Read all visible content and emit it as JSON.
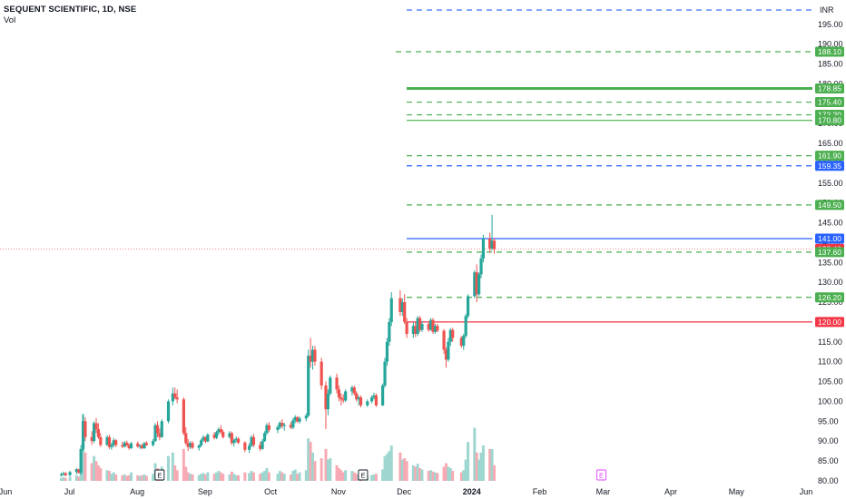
{
  "header": {
    "title": "SEQUENT SCIENTIFIC, 1D, NSE",
    "volume_label": "Vol"
  },
  "chart_data": {
    "type": "candlestick",
    "currency": "INR",
    "colors": {
      "up": "#26a69a",
      "down": "#ef5350",
      "up_volume": "#9ed6d0",
      "down_volume": "#f7aab3"
    },
    "y_ticks": [
      80,
      85,
      90,
      95,
      100,
      105,
      110,
      115,
      120,
      125,
      130,
      135,
      140,
      145,
      150,
      155,
      160,
      165,
      170,
      175,
      180,
      185,
      190,
      195
    ],
    "ylim": [
      78.6,
      199.3
    ],
    "x_labels": [
      "Jun",
      "Jul",
      "Aug",
      "Sep",
      "Oct",
      "Nov",
      "Dec",
      "2024",
      "Feb",
      "Mar",
      "Apr",
      "May",
      "Jun"
    ],
    "current_price": 138.4,
    "price_levels": [
      {
        "price": 198.6,
        "style": "dashed",
        "color": "#2962ff",
        "label": ""
      },
      {
        "price": 188.1,
        "style": "dashed",
        "color": "#4caf50",
        "label": "188.10"
      },
      {
        "price": 178.85,
        "style": "solid-thick",
        "color": "#4caf50",
        "label": "178.85"
      },
      {
        "price": 175.4,
        "style": "dashed",
        "color": "#4caf50",
        "label": "175.40"
      },
      {
        "price": 172.2,
        "style": "dashed",
        "color": "#4caf50",
        "label": "172.20"
      },
      {
        "price": 170.8,
        "style": "solid",
        "color": "#4caf50",
        "label": "170.80"
      },
      {
        "price": 161.9,
        "style": "dashed",
        "color": "#4caf50",
        "label": "161.90"
      },
      {
        "price": 159.35,
        "style": "dashed",
        "color": "#2962ff",
        "label": "159.35"
      },
      {
        "price": 149.5,
        "style": "dashed",
        "color": "#4caf50",
        "label": "149.50"
      },
      {
        "price": 141.0,
        "style": "solid",
        "color": "#2962ff",
        "label": "141.00"
      },
      {
        "price": 138.4,
        "style": "last-price",
        "color": "#f23645",
        "label": "138.40"
      },
      {
        "price": 137.6,
        "style": "dashed",
        "color": "#4caf50",
        "label": "137.60"
      },
      {
        "price": 126.2,
        "style": "dashed",
        "color": "#4caf50",
        "label": "126.20"
      },
      {
        "price": 120.0,
        "style": "solid",
        "color": "#f23645",
        "label": "120.00"
      }
    ],
    "events": [
      {
        "label": "E",
        "date": "2023-08-10",
        "color": "#131722"
      },
      {
        "label": "E",
        "date": "2023-11-11",
        "color": "#131722"
      },
      {
        "label": "E",
        "date": "2024-02-28",
        "color": "#e040fb"
      }
    ],
    "series_ohlc": [
      [
        "2023-06-26",
        81.5,
        82.0,
        81.0,
        81.6,
        0.04
      ],
      [
        "2023-06-27",
        81.6,
        82.3,
        81.2,
        81.9,
        0.05
      ],
      [
        "2023-06-28",
        81.9,
        82.2,
        81.1,
        81.4,
        0.04
      ],
      [
        "2023-06-30",
        81.4,
        82.5,
        81.2,
        82.2,
        0.06
      ],
      [
        "2023-07-03",
        82.2,
        83.2,
        81.6,
        82.9,
        0.08
      ],
      [
        "2023-07-04",
        82.9,
        83.0,
        81.8,
        82.0,
        0.06
      ],
      [
        "2023-07-05",
        82.0,
        89.0,
        81.5,
        88.0,
        0.32
      ],
      [
        "2023-07-06",
        88.0,
        96.5,
        87.5,
        95.0,
        0.95
      ],
      [
        "2023-07-07",
        95.0,
        96.0,
        90.0,
        91.0,
        0.4
      ],
      [
        "2023-07-10",
        91.0,
        92.5,
        89.0,
        90.0,
        0.25
      ],
      [
        "2023-07-11",
        90.0,
        95.0,
        89.5,
        94.5,
        0.35
      ],
      [
        "2023-07-12",
        94.5,
        95.8,
        92.0,
        93.0,
        0.28
      ],
      [
        "2023-07-13",
        93.0,
        94.5,
        90.5,
        91.0,
        0.22
      ],
      [
        "2023-07-14",
        91.0,
        92.0,
        88.5,
        89.0,
        0.18
      ],
      [
        "2023-07-17",
        89.0,
        91.5,
        88.8,
        91.0,
        0.15
      ],
      [
        "2023-07-18",
        91.0,
        91.6,
        88.0,
        88.5,
        0.14
      ],
      [
        "2023-07-19",
        88.5,
        89.5,
        87.8,
        89.0,
        0.1
      ],
      [
        "2023-07-20",
        89.0,
        90.8,
        88.5,
        90.2,
        0.12
      ],
      [
        "2023-07-21",
        90.2,
        90.5,
        88.5,
        89.0,
        0.09
      ],
      [
        "2023-07-24",
        89.0,
        89.8,
        88.2,
        88.6,
        0.08
      ],
      [
        "2023-07-25",
        88.6,
        90.0,
        88.4,
        89.6,
        0.09
      ],
      [
        "2023-07-26",
        89.6,
        90.1,
        88.7,
        89.0,
        0.07
      ],
      [
        "2023-07-27",
        89.0,
        89.4,
        87.8,
        88.2,
        0.08
      ],
      [
        "2023-07-28",
        88.2,
        89.8,
        88.0,
        89.4,
        0.12
      ],
      [
        "2023-07-31",
        89.4,
        89.9,
        88.3,
        88.6,
        0.08
      ],
      [
        "2023-08-01",
        88.6,
        89.2,
        88.0,
        88.9,
        0.07
      ],
      [
        "2023-08-02",
        88.9,
        89.3,
        87.9,
        88.2,
        0.08
      ],
      [
        "2023-08-03",
        88.2,
        89.8,
        88.0,
        89.5,
        0.09
      ],
      [
        "2023-08-04",
        89.5,
        90.0,
        88.8,
        89.0,
        0.07
      ],
      [
        "2023-08-07",
        89.0,
        90.5,
        88.6,
        90.0,
        0.1
      ],
      [
        "2023-08-08",
        90.0,
        94.5,
        89.8,
        94.0,
        0.25
      ],
      [
        "2023-08-09",
        94.0,
        95.0,
        91.0,
        92.0,
        0.18
      ],
      [
        "2023-08-10",
        92.0,
        93.2,
        90.2,
        91.0,
        0.13
      ],
      [
        "2023-08-11",
        91.0,
        95.5,
        90.8,
        95.0,
        0.2
      ],
      [
        "2023-08-14",
        95.0,
        100.5,
        94.5,
        100.0,
        0.35
      ],
      [
        "2023-08-16",
        100.0,
        103.5,
        99.0,
        102.0,
        0.4
      ],
      [
        "2023-08-17",
        102.0,
        103.5,
        100.5,
        101.0,
        0.22
      ],
      [
        "2023-08-18",
        101.0,
        103.0,
        99.5,
        100.5,
        0.15
      ],
      [
        "2023-08-21",
        100.5,
        101.0,
        91.5,
        92.0,
        0.45
      ],
      [
        "2023-08-22",
        92.0,
        93.5,
        89.0,
        89.5,
        0.2
      ],
      [
        "2023-08-23",
        89.5,
        90.5,
        87.5,
        88.5,
        0.12
      ],
      [
        "2023-08-24",
        88.5,
        90.0,
        88.0,
        89.5,
        0.1
      ],
      [
        "2023-08-25",
        89.5,
        90.0,
        88.0,
        88.3,
        0.09
      ],
      [
        "2023-08-28",
        88.3,
        89.2,
        87.6,
        88.9,
        0.08
      ],
      [
        "2023-08-29",
        88.9,
        90.6,
        88.5,
        90.2,
        0.1
      ],
      [
        "2023-08-30",
        90.2,
        91.5,
        89.8,
        91.0,
        0.11
      ],
      [
        "2023-08-31",
        91.0,
        91.2,
        89.5,
        89.9,
        0.09
      ],
      [
        "2023-09-01",
        89.9,
        92.0,
        89.7,
        91.6,
        0.12
      ],
      [
        "2023-09-04",
        91.6,
        92.3,
        90.4,
        90.8,
        0.1
      ],
      [
        "2023-09-05",
        90.8,
        92.6,
        90.5,
        92.2,
        0.12
      ],
      [
        "2023-09-06",
        92.2,
        93.5,
        91.6,
        93.0,
        0.14
      ],
      [
        "2023-09-07",
        93.0,
        94.0,
        91.8,
        92.3,
        0.12
      ],
      [
        "2023-09-08",
        92.3,
        92.8,
        90.6,
        91.0,
        0.1
      ],
      [
        "2023-09-11",
        91.0,
        92.5,
        90.6,
        92.0,
        0.09
      ],
      [
        "2023-09-12",
        92.0,
        92.4,
        89.0,
        89.5,
        0.13
      ],
      [
        "2023-09-13",
        89.5,
        90.6,
        88.6,
        90.2,
        0.1
      ],
      [
        "2023-09-14",
        90.2,
        91.2,
        89.6,
        90.6,
        0.08
      ],
      [
        "2023-09-15",
        90.6,
        91.0,
        89.2,
        89.6,
        0.08
      ],
      [
        "2023-09-18",
        89.6,
        90.0,
        87.2,
        87.8,
        0.12
      ],
      [
        "2023-09-20",
        87.8,
        89.5,
        87.0,
        88.8,
        0.11
      ],
      [
        "2023-09-21",
        88.8,
        91.5,
        88.5,
        91.0,
        0.14
      ],
      [
        "2023-09-22",
        91.0,
        91.8,
        88.5,
        89.0,
        0.12
      ],
      [
        "2023-09-25",
        89.0,
        89.8,
        87.5,
        88.0,
        0.1
      ],
      [
        "2023-09-26",
        88.0,
        90.5,
        87.8,
        90.0,
        0.12
      ],
      [
        "2023-09-27",
        90.0,
        92.5,
        89.8,
        92.0,
        0.14
      ],
      [
        "2023-09-28",
        92.0,
        94.5,
        91.5,
        94.0,
        0.18
      ],
      [
        "2023-09-29",
        94.0,
        94.8,
        92.2,
        92.8,
        0.12
      ],
      [
        "2023-10-03",
        92.8,
        94.0,
        92.0,
        93.5,
        0.1
      ],
      [
        "2023-10-04",
        93.5,
        95.0,
        93.0,
        94.6,
        0.14
      ],
      [
        "2023-10-05",
        94.6,
        95.5,
        93.2,
        93.8,
        0.12
      ],
      [
        "2023-10-06",
        93.8,
        94.6,
        92.6,
        94.1,
        0.1
      ],
      [
        "2023-10-09",
        94.1,
        94.8,
        93.0,
        93.4,
        0.09
      ],
      [
        "2023-10-10",
        93.4,
        95.8,
        93.0,
        95.2,
        0.14
      ],
      [
        "2023-10-11",
        95.2,
        96.5,
        94.5,
        96.0,
        0.16
      ],
      [
        "2023-10-12",
        96.0,
        96.3,
        94.6,
        94.9,
        0.1
      ],
      [
        "2023-10-13",
        94.9,
        96.2,
        94.4,
        95.7,
        0.12
      ],
      [
        "2023-10-16",
        95.7,
        97.0,
        95.0,
        96.4,
        0.15
      ],
      [
        "2023-10-17",
        96.4,
        113.0,
        96.0,
        111.5,
        0.6
      ],
      [
        "2023-10-18",
        111.5,
        116.0,
        108.5,
        110.0,
        0.55
      ],
      [
        "2023-10-19",
        110.0,
        114.0,
        108.0,
        113.0,
        0.4
      ],
      [
        "2023-10-20",
        113.0,
        114.0,
        109.0,
        110.0,
        0.28
      ],
      [
        "2023-10-23",
        110.0,
        111.0,
        103.0,
        104.0,
        0.32
      ],
      [
        "2023-10-25",
        104.0,
        105.0,
        93.0,
        98.0,
        0.45
      ],
      [
        "2023-10-26",
        98.0,
        103.0,
        96.5,
        102.0,
        0.3
      ],
      [
        "2023-10-27",
        102.0,
        106.5,
        101.5,
        106.0,
        0.32
      ],
      [
        "2023-10-30",
        106.0,
        107.0,
        102.0,
        103.0,
        0.22
      ],
      [
        "2023-10-31",
        103.0,
        104.0,
        100.0,
        101.0,
        0.18
      ],
      [
        "2023-11-01",
        101.0,
        102.0,
        99.0,
        100.5,
        0.15
      ],
      [
        "2023-11-02",
        100.5,
        101.8,
        99.6,
        100.2,
        0.12
      ],
      [
        "2023-11-03",
        100.2,
        103.0,
        99.8,
        102.5,
        0.15
      ],
      [
        "2023-11-06",
        102.5,
        104.0,
        101.5,
        103.5,
        0.14
      ],
      [
        "2023-11-07",
        103.5,
        104.0,
        101.5,
        102.0,
        0.12
      ],
      [
        "2023-11-08",
        102.0,
        102.5,
        100.0,
        100.5,
        0.1
      ],
      [
        "2023-11-09",
        100.5,
        101.5,
        99.0,
        101.0,
        0.09
      ],
      [
        "2023-11-10",
        101.0,
        101.5,
        98.5,
        99.0,
        0.08
      ],
      [
        "2023-11-13",
        99.0,
        100.5,
        98.6,
        100.0,
        0.07
      ],
      [
        "2023-11-15",
        100.0,
        101.5,
        99.5,
        101.0,
        0.08
      ],
      [
        "2023-11-16",
        101.0,
        102.2,
        100.5,
        101.5,
        0.09
      ],
      [
        "2023-11-17",
        101.5,
        102.0,
        98.6,
        99.0,
        0.1
      ],
      [
        "2023-11-20",
        99.0,
        104.5,
        98.8,
        104.0,
        0.16
      ],
      [
        "2023-11-21",
        104.0,
        111.0,
        103.5,
        110.0,
        0.35
      ],
      [
        "2023-11-22",
        110.0,
        116.0,
        109.0,
        115.0,
        0.38
      ],
      [
        "2023-11-23",
        115.0,
        121.0,
        114.0,
        120.0,
        0.42
      ],
      [
        "2023-11-24",
        120.0,
        127.5,
        119.0,
        126.0,
        0.5
      ],
      [
        "2023-11-28",
        126.0,
        128.0,
        121.5,
        122.5,
        0.4
      ],
      [
        "2023-11-29",
        122.5,
        126.0,
        121.5,
        125.0,
        0.3
      ],
      [
        "2023-11-30",
        125.0,
        127.0,
        119.5,
        120.0,
        0.32
      ],
      [
        "2023-12-01",
        120.0,
        121.0,
        116.0,
        117.0,
        0.28
      ],
      [
        "2023-12-04",
        117.0,
        119.8,
        116.0,
        119.0,
        0.22
      ],
      [
        "2023-12-05",
        119.0,
        120.0,
        116.2,
        117.0,
        0.2
      ],
      [
        "2023-12-06",
        117.0,
        121.5,
        116.5,
        121.0,
        0.24
      ],
      [
        "2023-12-07",
        121.0,
        121.5,
        117.5,
        118.0,
        0.18
      ],
      [
        "2023-12-08",
        118.0,
        120.2,
        117.5,
        119.5,
        0.16
      ],
      [
        "2023-12-11",
        119.5,
        120.0,
        117.5,
        118.0,
        0.14
      ],
      [
        "2023-12-12",
        118.0,
        121.0,
        117.8,
        120.5,
        0.15
      ],
      [
        "2023-12-13",
        120.5,
        121.0,
        117.0,
        117.5,
        0.13
      ],
      [
        "2023-12-14",
        117.5,
        119.5,
        117.0,
        119.0,
        0.12
      ],
      [
        "2023-12-15",
        119.0,
        119.6,
        117.4,
        117.8,
        0.11
      ],
      [
        "2023-12-18",
        117.8,
        118.2,
        112.0,
        113.0,
        0.2
      ],
      [
        "2023-12-19",
        113.0,
        113.6,
        108.5,
        110.5,
        0.25
      ],
      [
        "2023-12-20",
        110.5,
        116.0,
        110.0,
        115.0,
        0.2
      ],
      [
        "2023-12-21",
        115.0,
        118.5,
        114.0,
        118.0,
        0.18
      ],
      [
        "2023-12-22",
        118.0,
        118.5,
        115.0,
        116.0,
        0.14
      ],
      [
        "2023-12-26",
        116.0,
        116.5,
        113.5,
        114.0,
        0.12
      ],
      [
        "2023-12-27",
        114.0,
        117.0,
        113.0,
        116.5,
        0.15
      ],
      [
        "2023-12-28",
        116.5,
        122.0,
        116.0,
        121.5,
        0.3
      ],
      [
        "2023-12-29",
        121.5,
        127.0,
        121.0,
        126.5,
        0.55
      ],
      [
        "2024-01-01",
        126.5,
        133.0,
        126.0,
        132.5,
        0.75
      ],
      [
        "2024-01-02",
        132.5,
        134.5,
        125.0,
        127.0,
        0.4
      ],
      [
        "2024-01-03",
        127.0,
        132.5,
        126.5,
        132.0,
        0.3
      ],
      [
        "2024-01-04",
        132.0,
        137.0,
        131.0,
        136.0,
        0.4
      ],
      [
        "2024-01-05",
        136.0,
        142.0,
        135.0,
        141.0,
        0.5
      ],
      [
        "2024-01-08",
        141.0,
        142.5,
        137.5,
        138.5,
        0.45
      ],
      [
        "2024-01-09",
        138.5,
        147.0,
        138.0,
        140.5,
        0.45
      ],
      [
        "2024-01-10",
        140.5,
        141.2,
        137.2,
        138.4,
        0.22
      ]
    ]
  }
}
